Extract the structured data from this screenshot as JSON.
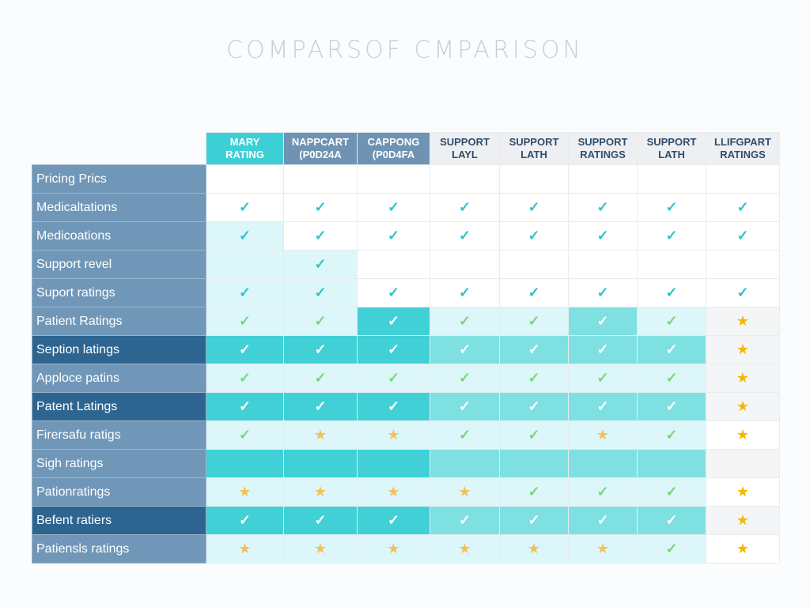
{
  "title": "COMPARSOF CMPARISON",
  "columns": [
    [
      "MARY",
      "RATING"
    ],
    [
      "NAPPCART",
      "(P0D24A"
    ],
    [
      "CAPPONG",
      "(P0D4FA"
    ],
    [
      "SUPPORT",
      "LAYL"
    ],
    [
      "SUPPORT",
      "LATH"
    ],
    [
      "SUPPORT",
      "RATINGS"
    ],
    [
      "SUPPORT",
      "LATH"
    ],
    [
      "LLIFGPART",
      "RATINGS"
    ]
  ],
  "rows": [
    {
      "label": "Pricing Prics",
      "dark": false,
      "top": true,
      "tones": "wwwwwwww",
      "marks": "........"
    },
    {
      "label": "Medicaltations",
      "dark": false,
      "top": true,
      "tones": "wwwwwwww",
      "marks": "cccccccc"
    },
    {
      "label": "Medicoations",
      "dark": false,
      "top": true,
      "tones": "lwwwwwww",
      "marks": "cccccccc"
    },
    {
      "label": "Support revel",
      "dark": false,
      "top": true,
      "tones": "llwwwwww",
      "marks": ".c......"
    },
    {
      "label": "Suport ratings",
      "dark": false,
      "top": true,
      "tones": "llwwwwww",
      "marks": "cccccccc"
    },
    {
      "label": "Patient Ratings",
      "dark": false,
      "top": false,
      "tones": "lldllmlg",
      "marks": "ccccccc*"
    },
    {
      "label": "Seption latings",
      "dark": true,
      "top": false,
      "tones": "dddmmmmg",
      "marks": "ccccccc*"
    },
    {
      "label": "Apploce patins",
      "dark": false,
      "top": false,
      "tones": "lllllllg",
      "marks": "ccccccc*"
    },
    {
      "label": "Patent Latings",
      "dark": true,
      "top": false,
      "tones": "dddmmmmg",
      "marks": "ccccccc*"
    },
    {
      "label": "Firersafu ratigs",
      "dark": false,
      "top": false,
      "tones": "lllllllw",
      "marks": "c**cc*c*"
    },
    {
      "label": "Sigh ratings",
      "dark": false,
      "top": false,
      "tones": "dddmmmmg",
      "marks": "........"
    },
    {
      "label": "Pationratings",
      "dark": false,
      "top": false,
      "tones": "lllllllw",
      "marks": "****ccc*"
    },
    {
      "label": "Befent ratiers",
      "dark": true,
      "top": false,
      "tones": "dddmmmmg",
      "marks": "ccccccc*"
    },
    {
      "label": "Patiensls ratings",
      "dark": false,
      "top": false,
      "tones": "lllllllw",
      "marks": "******c*"
    }
  ],
  "icons": {
    "c": "check-icon",
    "*": "star-icon"
  },
  "colors": {
    "accent": "#3ccfd6",
    "label_bg": "#7097b8",
    "label_dark": "#2d6590",
    "star": "#f5b700"
  }
}
